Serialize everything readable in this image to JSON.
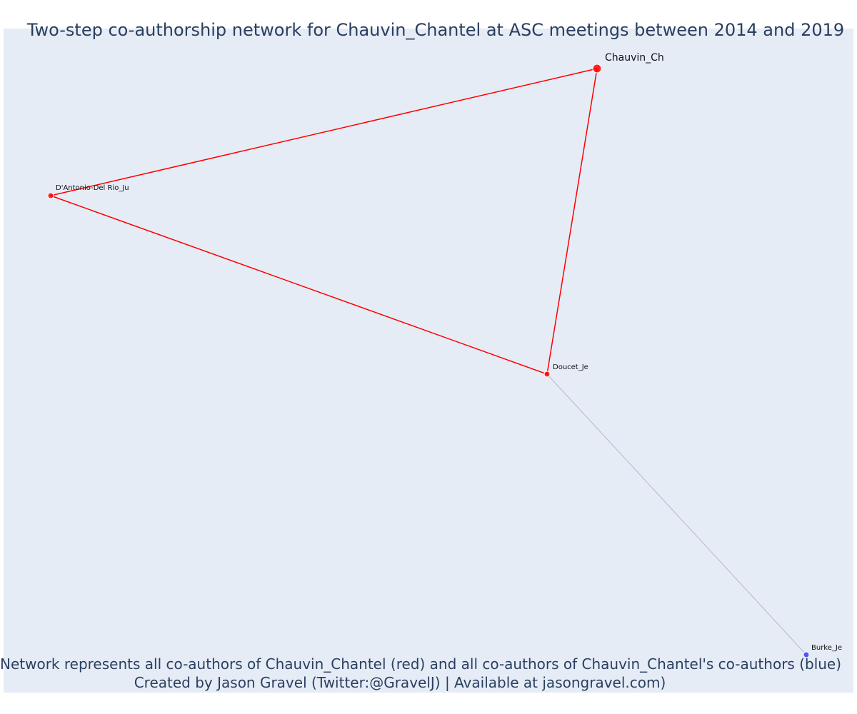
{
  "title": "Two-step co-authorship network for Chauvin_Chantel at ASC meetings between 2014 and 2019",
  "caption": {
    "line1": "Network represents all co-authors of Chauvin_Chantel (red) and all co-authors of Chauvin_Chantel's co-authors (blue)",
    "line2": "Created by Jason Gravel (Twitter:@GravelJ) | Available at jasongravel.com)"
  },
  "colors": {
    "background": "#e5ecf6",
    "direct_coauthor": "#ff0000",
    "second_step": "#3a3aff",
    "second_step_edge": "#b8b8cc",
    "title_text": "#2a3f5f"
  },
  "network": {
    "nodes": [
      {
        "id": "Chauvin_Ch",
        "label": "Chauvin_Ch",
        "group": "focal"
      },
      {
        "id": "D'Antonio-Del Rio_Ju",
        "label": "D'Antonio-Del Rio_Ju",
        "group": "coauthor"
      },
      {
        "id": "Doucet_Je",
        "label": "Doucet_Je",
        "group": "coauthor"
      },
      {
        "id": "Burke_Je",
        "label": "Burke_Je",
        "group": "second-step"
      }
    ],
    "edges": [
      {
        "source": "Chauvin_Ch",
        "target": "D'Antonio-Del Rio_Ju",
        "group": "coauthor"
      },
      {
        "source": "Chauvin_Ch",
        "target": "Doucet_Je",
        "group": "coauthor"
      },
      {
        "source": "D'Antonio-Del Rio_Ju",
        "target": "Doucet_Je",
        "group": "coauthor"
      },
      {
        "source": "Doucet_Je",
        "target": "Burke_Je",
        "group": "second-step"
      }
    ]
  }
}
